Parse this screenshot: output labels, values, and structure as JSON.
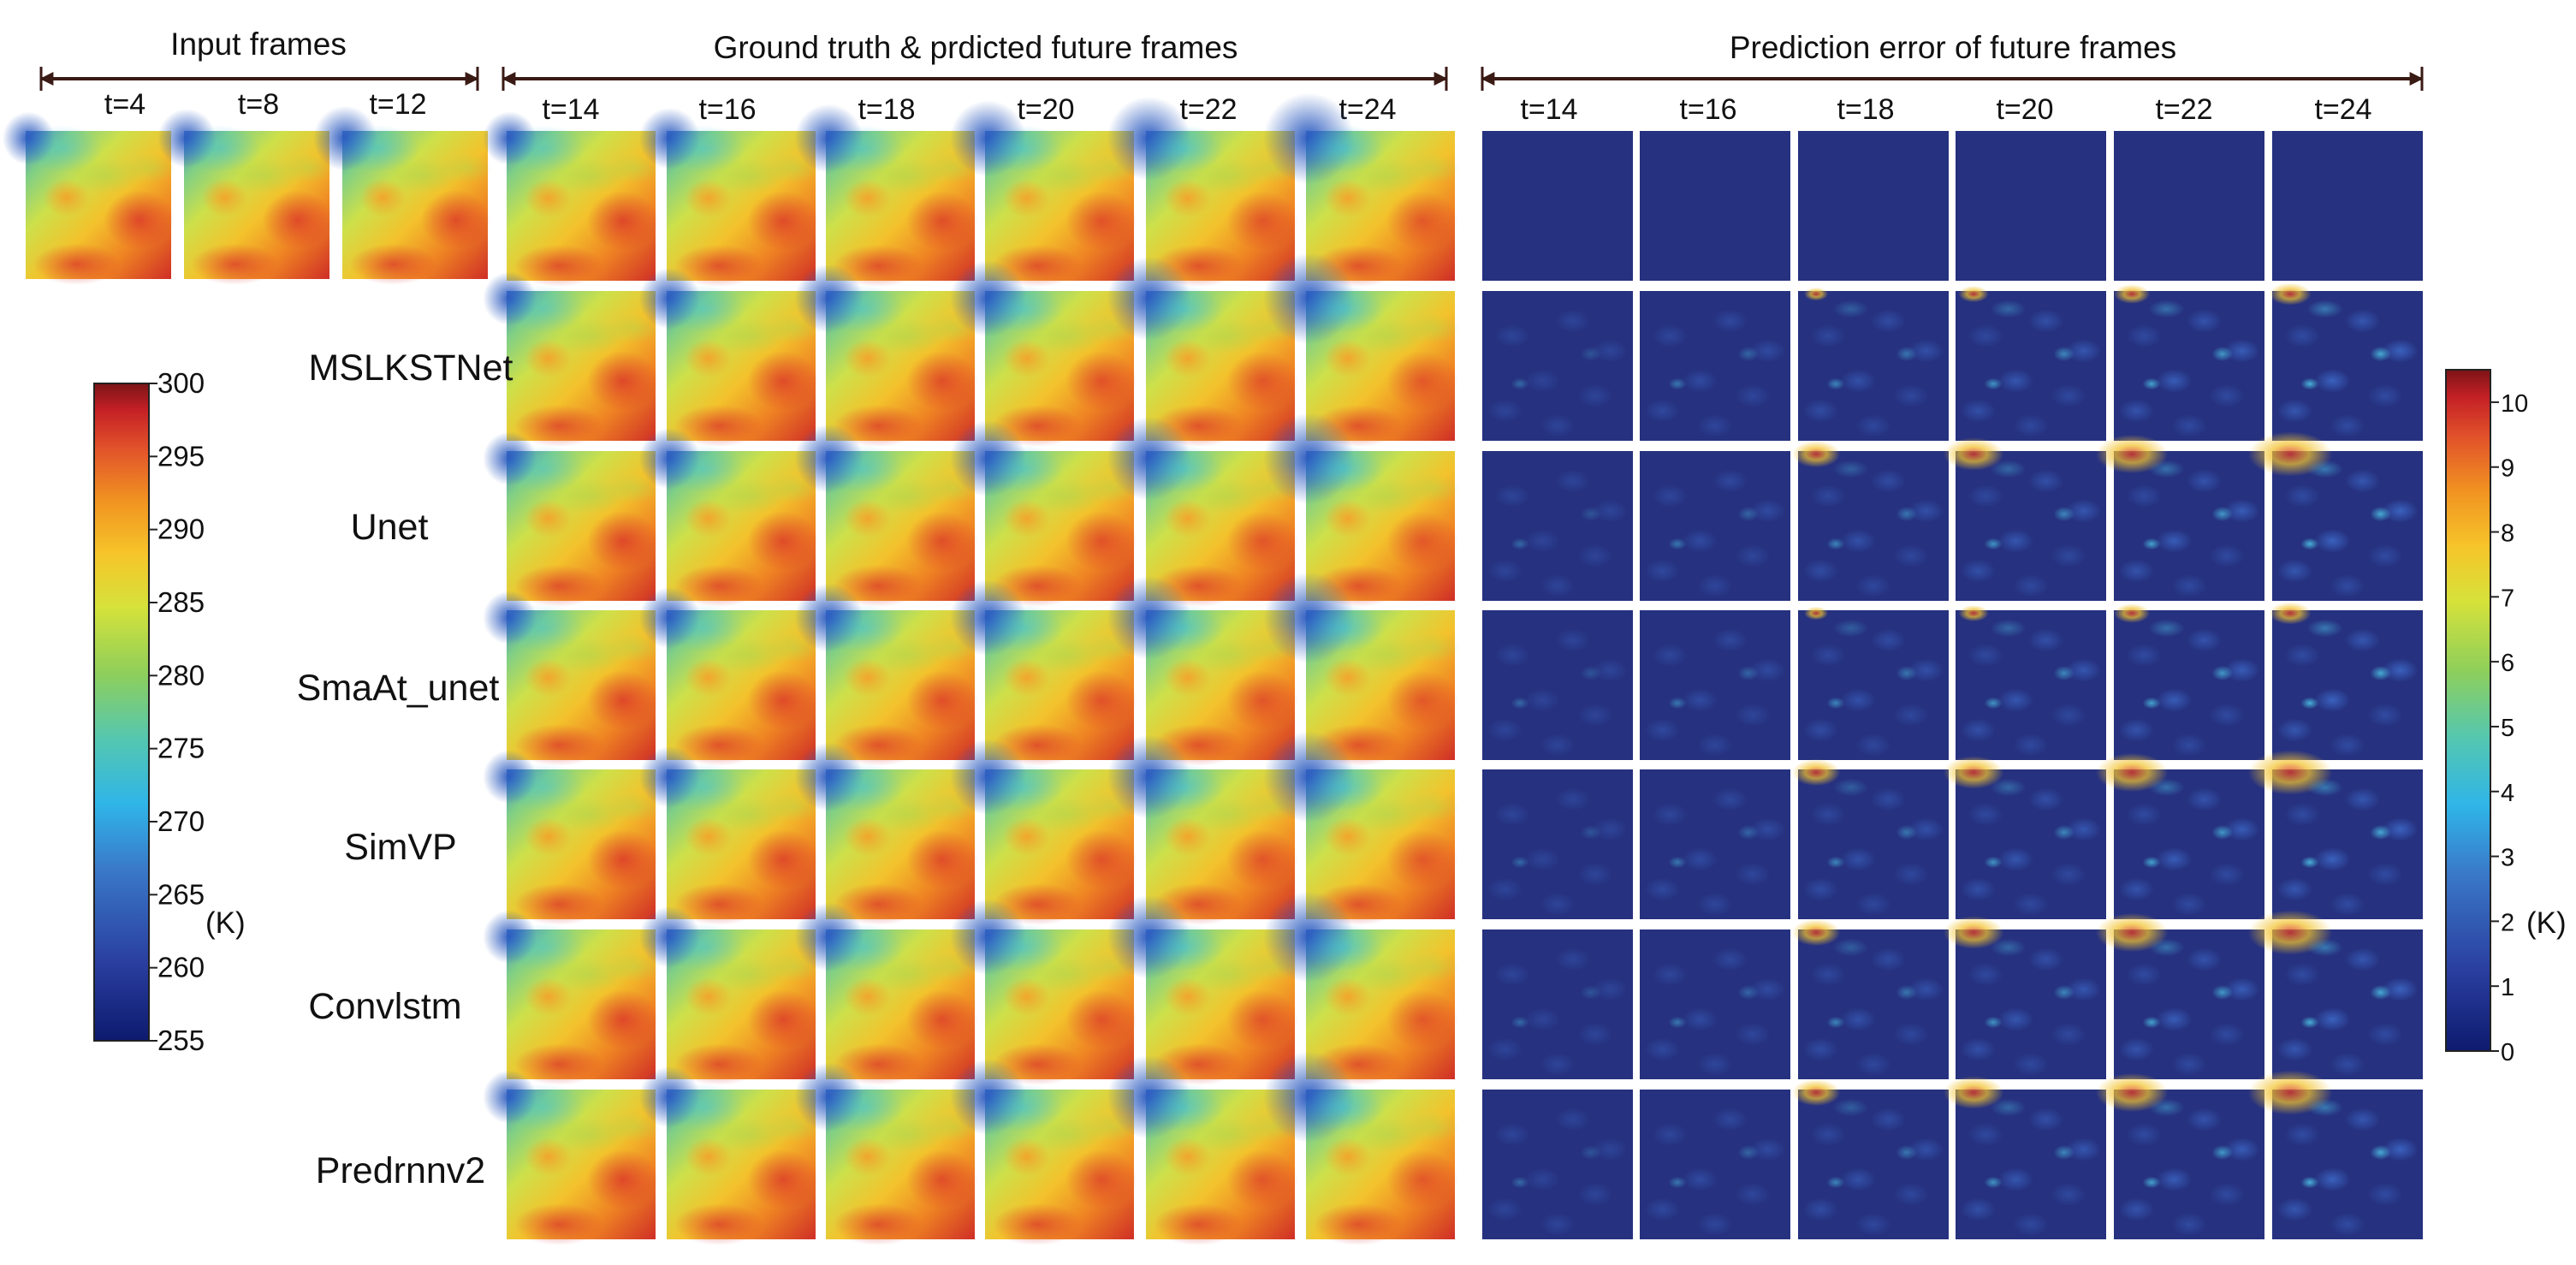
{
  "sections": {
    "input": "Input frames",
    "ground_truth": "Ground truth & prdicted future frames",
    "error": "Prediction error of future frames"
  },
  "time_labels": {
    "input": [
      "t=4",
      "t=8",
      "t=12"
    ],
    "future": [
      "t=14",
      "t=16",
      "t=18",
      "t=20",
      "t=22",
      "t=24"
    ],
    "error": [
      "t=14",
      "t=16",
      "t=18",
      "t=20",
      "t=22",
      "t=24"
    ]
  },
  "models": [
    "MSLKSTNet",
    "Unet",
    "SmaAt_unet",
    "SimVP",
    "Convlstm",
    "Predrnnv2"
  ],
  "temperature_colorbar": {
    "unit": "(K)",
    "min": 255,
    "max": 300,
    "ticks": [
      "300",
      "295",
      "290",
      "285",
      "280",
      "275",
      "270",
      "265",
      "260",
      "255"
    ]
  },
  "error_colorbar": {
    "unit": "(K)",
    "min": 0,
    "max": 10.5,
    "ticks": [
      "10",
      "9",
      "8",
      "7",
      "6",
      "5",
      "4",
      "3",
      "2",
      "1",
      "0"
    ]
  },
  "colors": {
    "jet": [
      "#0d1a6e",
      "#2a3fa0",
      "#3a78c8",
      "#2fb5e8",
      "#55c7b0",
      "#8fcf5a",
      "#d6e23a",
      "#f6c52a",
      "#f19421",
      "#e2532a",
      "#c42026",
      "#7b1416"
    ],
    "error_background": "#26317f"
  }
}
